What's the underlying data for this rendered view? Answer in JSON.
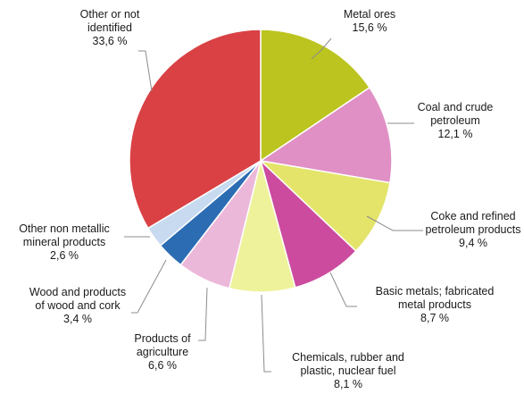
{
  "chart_data": {
    "type": "pie",
    "title": "",
    "unit": "%",
    "slices": [
      {
        "label": [
          "Metal ores"
        ],
        "value": 15.6,
        "display": "15,6 %",
        "color": "#bcc41f"
      },
      {
        "label": [
          "Coal and crude",
          "petroleum"
        ],
        "value": 12.1,
        "display": "12,1 %",
        "color": "#e090c4"
      },
      {
        "label": [
          "Coke and refined",
          "petroleum products"
        ],
        "value": 9.4,
        "display": "9,4 %",
        "color": "#e4e46a"
      },
      {
        "label": [
          "Basic metals; fabricated",
          "metal products"
        ],
        "value": 8.7,
        "display": "8,7 %",
        "color": "#cc4b9e"
      },
      {
        "label": [
          "Chemicals, rubber and",
          "plastic, nuclear fuel"
        ],
        "value": 8.1,
        "display": "8,1 %",
        "color": "#eef29a"
      },
      {
        "label": [
          "Products of",
          "agriculture"
        ],
        "value": 6.6,
        "display": "6,6 %",
        "color": "#ecb8da"
      },
      {
        "label": [
          "Wood and products",
          "of wood and cork"
        ],
        "value": 3.4,
        "display": "3,4 %",
        "color": "#2b6cb3"
      },
      {
        "label": [
          "Other non metallic",
          "mineral products"
        ],
        "value": 2.6,
        "display": "2,6 %",
        "color": "#c7daf0"
      },
      {
        "label": [
          "Other or not",
          "identified"
        ],
        "value": 33.6,
        "display": "33,6 %",
        "color": "#d94145"
      }
    ],
    "legend": "none",
    "start_angle": "12 o'clock",
    "direction": "clockwise"
  }
}
